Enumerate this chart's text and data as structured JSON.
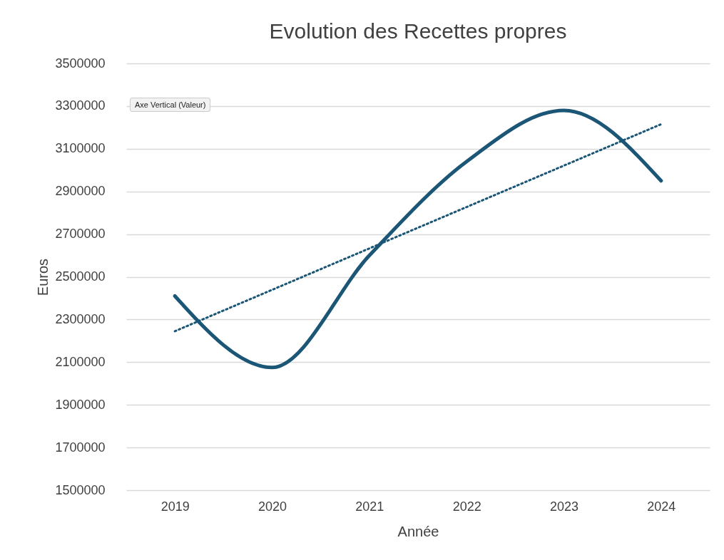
{
  "chart_data": {
    "type": "line",
    "title": "Evolution des Recettes propres",
    "xlabel": "Année",
    "ylabel": "Euros",
    "x": [
      2019,
      2020,
      2021,
      2022,
      2023,
      2024
    ],
    "xlim": [
      2018.5,
      2024.5
    ],
    "xticks": [
      2019,
      2020,
      2021,
      2022,
      2023,
      2024
    ],
    "ylim": [
      1500000,
      3500000
    ],
    "yticks": [
      1500000,
      1700000,
      1900000,
      2100000,
      2300000,
      2500000,
      2700000,
      2900000,
      3100000,
      3300000,
      3500000
    ],
    "grid": "y",
    "marker": "none",
    "series": [
      {
        "color": "#1b5676",
        "line_style": "solid",
        "values": [
          2410000,
          2075000,
          2600000,
          3040000,
          3280000,
          2950000
        ]
      },
      {
        "type": "line",
        "color": "#1b5676",
        "line_style": "dotted",
        "x": [
          2019,
          2024
        ],
        "values": [
          2245000,
          3215000
        ]
      }
    ],
    "annotations": [
      "Axe Vertical (Valeur)"
    ]
  }
}
